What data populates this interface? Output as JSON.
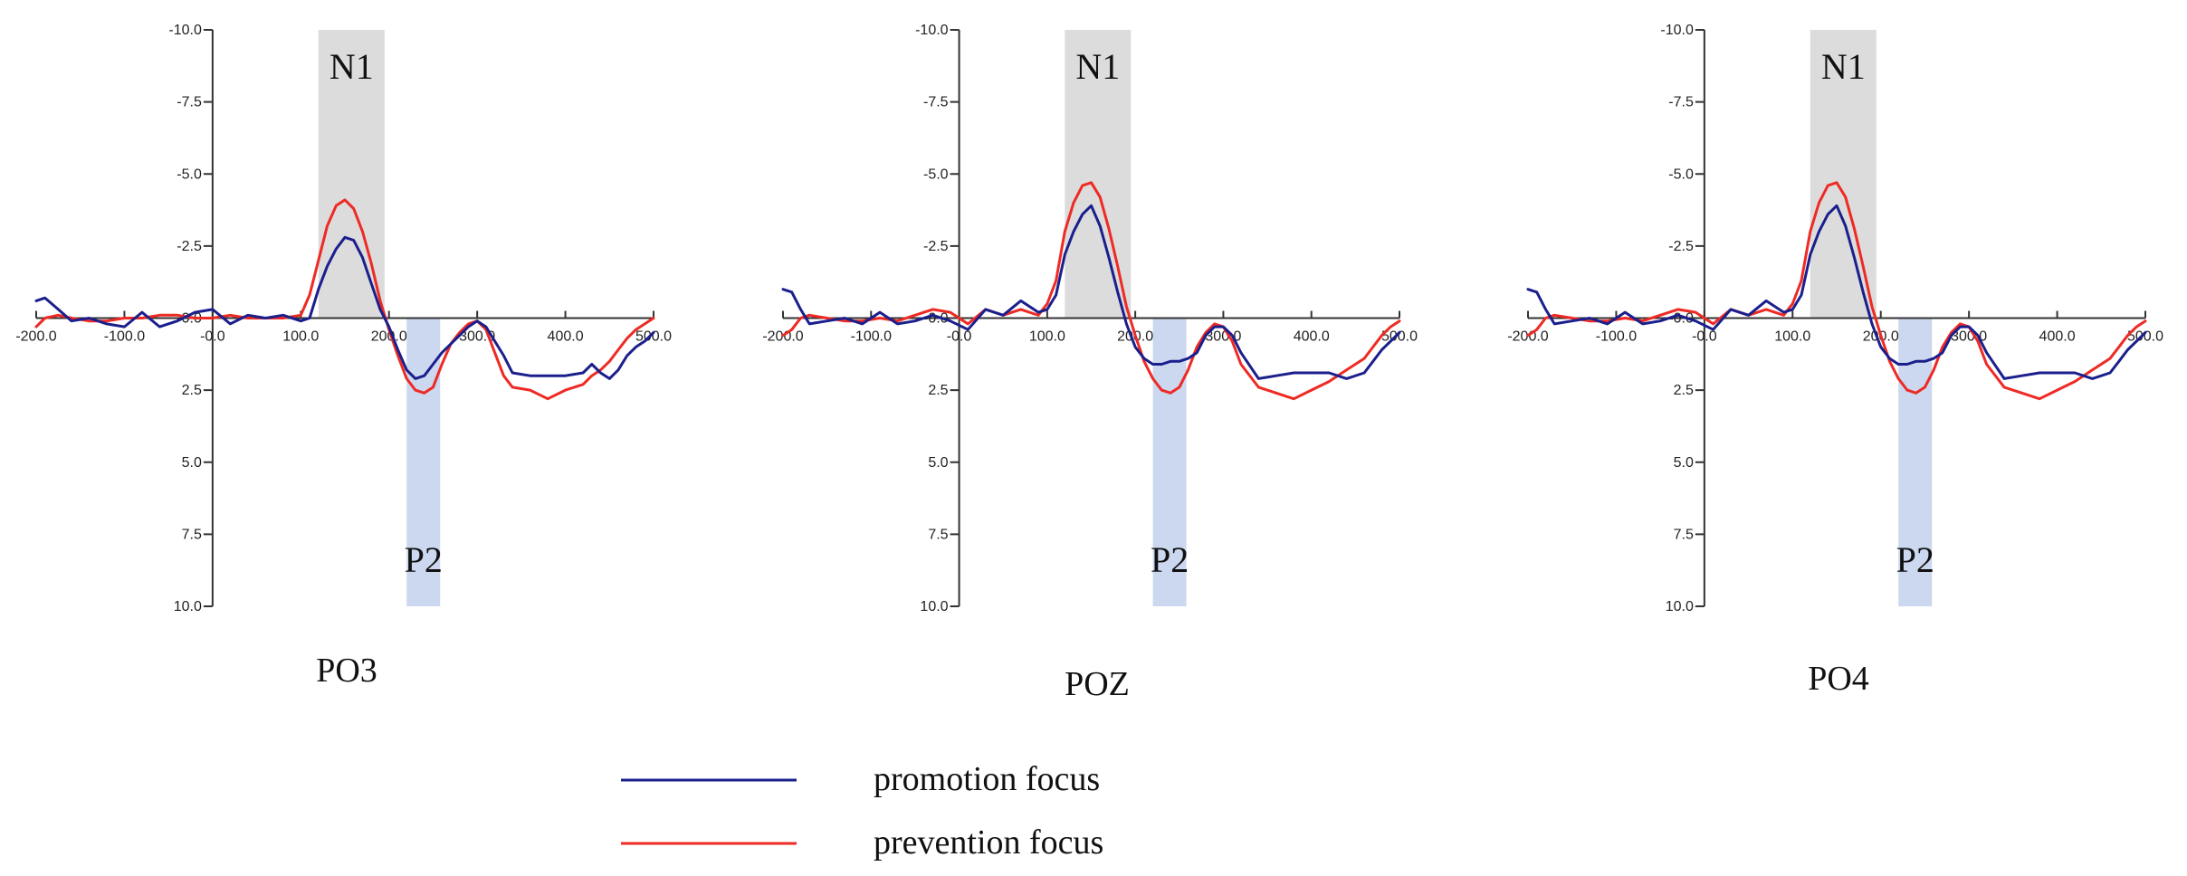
{
  "colors": {
    "promotion": "#1a1f8c",
    "prevention": "#ee2a24",
    "n1_window": "#dcdcdc",
    "p2_window": "#cbd8ef",
    "axis": "#333333"
  },
  "legend": {
    "items": [
      {
        "label": "promotion focus",
        "color_key": "promotion"
      },
      {
        "label": "prevention focus",
        "color_key": "prevention"
      }
    ]
  },
  "chart_data": [
    {
      "type": "line",
      "title": "PO3",
      "x_range": [
        -200,
        500
      ],
      "y_range": [
        -10,
        10
      ],
      "y_inverted": true,
      "x_ticks": [
        -200,
        -100,
        0,
        100,
        200,
        300,
        400,
        500
      ],
      "x_tick_labels": [
        "-200.0",
        "-100.0",
        "-0.0",
        "100.0",
        "200.0",
        "300.0",
        "400.0",
        "500.0"
      ],
      "y_ticks": [
        -10,
        -7.5,
        -5,
        -2.5,
        0,
        2.5,
        5,
        7.5,
        10
      ],
      "y_tick_labels": [
        "-10.0",
        "-7.5",
        "-5.0",
        "-2.5",
        "-0.0",
        "2.5",
        "5.0",
        "7.5",
        "10.0"
      ],
      "windows": [
        {
          "label": "N1",
          "x_start": 120,
          "x_end": 195,
          "y_start": -10,
          "y_end": 0,
          "color_key": "n1_window"
        },
        {
          "label": "P2",
          "x_start": 220,
          "x_end": 258,
          "y_start": 0,
          "y_end": 10,
          "color_key": "p2_window"
        }
      ],
      "series": [
        {
          "name": "promotion focus",
          "color_key": "promotion",
          "x": [
            -200,
            -190,
            -175,
            -160,
            -140,
            -120,
            -100,
            -80,
            -60,
            -40,
            -20,
            0,
            20,
            40,
            60,
            80,
            100,
            110,
            120,
            130,
            140,
            150,
            160,
            170,
            180,
            190,
            200,
            210,
            220,
            230,
            240,
            250,
            260,
            270,
            280,
            290,
            300,
            310,
            320,
            330,
            340,
            360,
            380,
            400,
            420,
            430,
            440,
            450,
            460,
            470,
            480,
            490,
            500
          ],
          "y": [
            -0.6,
            -0.7,
            -0.3,
            0.1,
            0,
            0.2,
            0.3,
            -0.2,
            0.3,
            0.1,
            -0.2,
            -0.3,
            0.2,
            -0.1,
            0,
            -0.1,
            0.1,
            0,
            -1,
            -1.8,
            -2.4,
            -2.8,
            -2.7,
            -2.1,
            -1.2,
            -0.3,
            0.3,
            1.1,
            1.8,
            2.1,
            2,
            1.6,
            1.2,
            0.9,
            0.6,
            0.3,
            0.1,
            0.3,
            0.8,
            1.3,
            1.9,
            2,
            2,
            2,
            1.9,
            1.6,
            1.9,
            2.1,
            1.8,
            1.3,
            1,
            0.8,
            0.5
          ]
        },
        {
          "name": "prevention focus",
          "color_key": "prevention",
          "x": [
            -200,
            -190,
            -175,
            -160,
            -140,
            -120,
            -100,
            -80,
            -60,
            -40,
            -20,
            0,
            20,
            40,
            60,
            80,
            100,
            110,
            120,
            130,
            140,
            150,
            160,
            170,
            180,
            190,
            200,
            210,
            220,
            230,
            240,
            250,
            260,
            270,
            280,
            290,
            300,
            310,
            320,
            330,
            340,
            360,
            380,
            400,
            420,
            430,
            440,
            450,
            460,
            470,
            480,
            490,
            500
          ],
          "y": [
            0.3,
            0,
            -0.1,
            0,
            0.1,
            0.1,
            0,
            0,
            -0.1,
            -0.1,
            0,
            0,
            -0.1,
            0,
            0,
            0,
            -0.1,
            -0.8,
            -2,
            -3.2,
            -3.9,
            -4.1,
            -3.8,
            -3,
            -1.9,
            -0.6,
            0.4,
            1.3,
            2.1,
            2.5,
            2.6,
            2.4,
            1.6,
            0.9,
            0.5,
            0.2,
            0.1,
            0.4,
            1.2,
            2,
            2.4,
            2.5,
            2.8,
            2.5,
            2.3,
            2,
            1.8,
            1.5,
            1.1,
            0.7,
            0.4,
            0.2,
            0
          ]
        }
      ]
    },
    {
      "type": "line",
      "title": "POZ",
      "x_range": [
        -200,
        500
      ],
      "y_range": [
        -10,
        10
      ],
      "y_inverted": true,
      "x_ticks": [
        -200,
        -100,
        0,
        100,
        200,
        300,
        400,
        500
      ],
      "x_tick_labels": [
        "-200.0",
        "-100.0",
        "-0.0",
        "100.0",
        "200.0",
        "300.0",
        "400.0",
        "500.0"
      ],
      "y_ticks": [
        -10,
        -7.5,
        -5,
        -2.5,
        0,
        2.5,
        5,
        7.5,
        10
      ],
      "y_tick_labels": [
        "-10.0",
        "-7.5",
        "-5.0",
        "-2.5",
        "-0.0",
        "2.5",
        "5.0",
        "7.5",
        "10.0"
      ],
      "windows": [
        {
          "label": "N1",
          "x_start": 120,
          "x_end": 195,
          "y_start": -10,
          "y_end": 0,
          "color_key": "n1_window"
        },
        {
          "label": "P2",
          "x_start": 220,
          "x_end": 258,
          "y_start": 0,
          "y_end": 10,
          "color_key": "p2_window"
        }
      ],
      "series": [
        {
          "name": "promotion focus",
          "color_key": "promotion",
          "x": [
            -200,
            -190,
            -180,
            -170,
            -150,
            -130,
            -110,
            -90,
            -70,
            -50,
            -30,
            -10,
            10,
            30,
            50,
            70,
            90,
            100,
            110,
            120,
            130,
            140,
            150,
            160,
            170,
            180,
            190,
            200,
            210,
            220,
            230,
            240,
            250,
            260,
            270,
            280,
            290,
            300,
            310,
            320,
            340,
            360,
            380,
            400,
            420,
            440,
            460,
            470,
            480,
            490,
            500
          ],
          "y": [
            -1,
            -0.9,
            -0.3,
            0.2,
            0.1,
            0,
            0.2,
            -0.2,
            0.2,
            0.1,
            -0.1,
            0.1,
            0.4,
            -0.3,
            -0.1,
            -0.6,
            -0.2,
            -0.3,
            -0.8,
            -2.2,
            -3,
            -3.6,
            -3.9,
            -3.2,
            -2.1,
            -0.9,
            0.2,
            1,
            1.4,
            1.6,
            1.6,
            1.5,
            1.5,
            1.4,
            1.2,
            0.6,
            0.3,
            0.3,
            0.6,
            1.2,
            2.1,
            2,
            1.9,
            1.9,
            1.9,
            2.1,
            1.9,
            1.5,
            1.1,
            0.8,
            0.5
          ]
        },
        {
          "name": "prevention focus",
          "color_key": "prevention",
          "x": [
            -200,
            -190,
            -180,
            -170,
            -150,
            -130,
            -110,
            -90,
            -70,
            -50,
            -30,
            -10,
            10,
            30,
            50,
            70,
            90,
            100,
            110,
            120,
            130,
            140,
            150,
            160,
            170,
            180,
            190,
            200,
            210,
            220,
            230,
            240,
            250,
            260,
            270,
            280,
            290,
            300,
            310,
            320,
            340,
            360,
            380,
            400,
            420,
            440,
            460,
            470,
            480,
            490,
            500
          ],
          "y": [
            0.6,
            0.4,
            0,
            -0.1,
            0,
            0.1,
            0.1,
            0,
            0.1,
            -0.1,
            -0.3,
            -0.2,
            0.2,
            -0.3,
            -0.1,
            -0.3,
            -0.1,
            -0.5,
            -1.3,
            -3,
            -4,
            -4.6,
            -4.7,
            -4.2,
            -3.1,
            -1.8,
            -0.4,
            0.6,
            1.5,
            2.1,
            2.5,
            2.6,
            2.4,
            1.8,
            1,
            0.5,
            0.2,
            0.3,
            0.8,
            1.6,
            2.4,
            2.6,
            2.8,
            2.5,
            2.2,
            1.8,
            1.4,
            1,
            0.6,
            0.3,
            0.1
          ]
        }
      ]
    },
    {
      "type": "line",
      "title": "PO4",
      "x_range": [
        -200,
        500
      ],
      "y_range": [
        -10,
        10
      ],
      "y_inverted": true,
      "x_ticks": [
        -200,
        -100,
        0,
        100,
        200,
        300,
        400,
        500
      ],
      "x_tick_labels": [
        "-200.0",
        "-100.0",
        "-0.0",
        "100.0",
        "200.0",
        "300.0",
        "400.0",
        "500.0"
      ],
      "y_ticks": [
        -10,
        -7.5,
        -5,
        -2.5,
        0,
        2.5,
        5,
        7.5,
        10
      ],
      "y_tick_labels": [
        "-10.0",
        "-7.5",
        "-5.0",
        "-2.5",
        "-0.0",
        "2.5",
        "5.0",
        "7.5",
        "10.0"
      ],
      "windows": [
        {
          "label": "N1",
          "x_start": 120,
          "x_end": 195,
          "y_start": -10,
          "y_end": 0,
          "color_key": "n1_window"
        },
        {
          "label": "P2",
          "x_start": 220,
          "x_end": 258,
          "y_start": 0,
          "y_end": 10,
          "color_key": "p2_window"
        }
      ],
      "series": [
        {
          "name": "promotion focus",
          "color_key": "promotion",
          "x": [
            -200,
            -190,
            -180,
            -170,
            -150,
            -130,
            -110,
            -90,
            -70,
            -50,
            -30,
            -10,
            10,
            30,
            50,
            70,
            90,
            100,
            110,
            120,
            130,
            140,
            150,
            160,
            170,
            180,
            190,
            200,
            210,
            220,
            230,
            240,
            250,
            260,
            270,
            280,
            290,
            300,
            310,
            320,
            340,
            360,
            380,
            400,
            420,
            440,
            460,
            470,
            480,
            490,
            500
          ],
          "y": [
            -1,
            -0.9,
            -0.3,
            0.2,
            0.1,
            0,
            0.2,
            -0.2,
            0.2,
            0.1,
            -0.1,
            0.1,
            0.4,
            -0.3,
            -0.1,
            -0.6,
            -0.2,
            -0.3,
            -0.8,
            -2.2,
            -3,
            -3.6,
            -3.9,
            -3.2,
            -2.1,
            -0.9,
            0.2,
            1,
            1.4,
            1.6,
            1.6,
            1.5,
            1.5,
            1.4,
            1.2,
            0.6,
            0.3,
            0.3,
            0.6,
            1.2,
            2.1,
            2,
            1.9,
            1.9,
            1.9,
            2.1,
            1.9,
            1.5,
            1.1,
            0.8,
            0.5
          ]
        },
        {
          "name": "prevention focus",
          "color_key": "prevention",
          "x": [
            -200,
            -190,
            -180,
            -170,
            -150,
            -130,
            -110,
            -90,
            -70,
            -50,
            -30,
            -10,
            10,
            30,
            50,
            70,
            90,
            100,
            110,
            120,
            130,
            140,
            150,
            160,
            170,
            180,
            190,
            200,
            210,
            220,
            230,
            240,
            250,
            260,
            270,
            280,
            290,
            300,
            310,
            320,
            340,
            360,
            380,
            400,
            420,
            440,
            460,
            470,
            480,
            490,
            500
          ],
          "y": [
            0.6,
            0.4,
            0,
            -0.1,
            0,
            0.1,
            0.1,
            0,
            0.1,
            -0.1,
            -0.3,
            -0.2,
            0.2,
            -0.3,
            -0.1,
            -0.3,
            -0.1,
            -0.5,
            -1.3,
            -3,
            -4,
            -4.6,
            -4.7,
            -4.2,
            -3.1,
            -1.8,
            -0.4,
            0.6,
            1.5,
            2.1,
            2.5,
            2.6,
            2.4,
            1.8,
            1,
            0.5,
            0.2,
            0.3,
            0.8,
            1.6,
            2.4,
            2.6,
            2.8,
            2.5,
            2.2,
            1.8,
            1.4,
            1,
            0.6,
            0.3,
            0.1
          ]
        }
      ]
    }
  ]
}
